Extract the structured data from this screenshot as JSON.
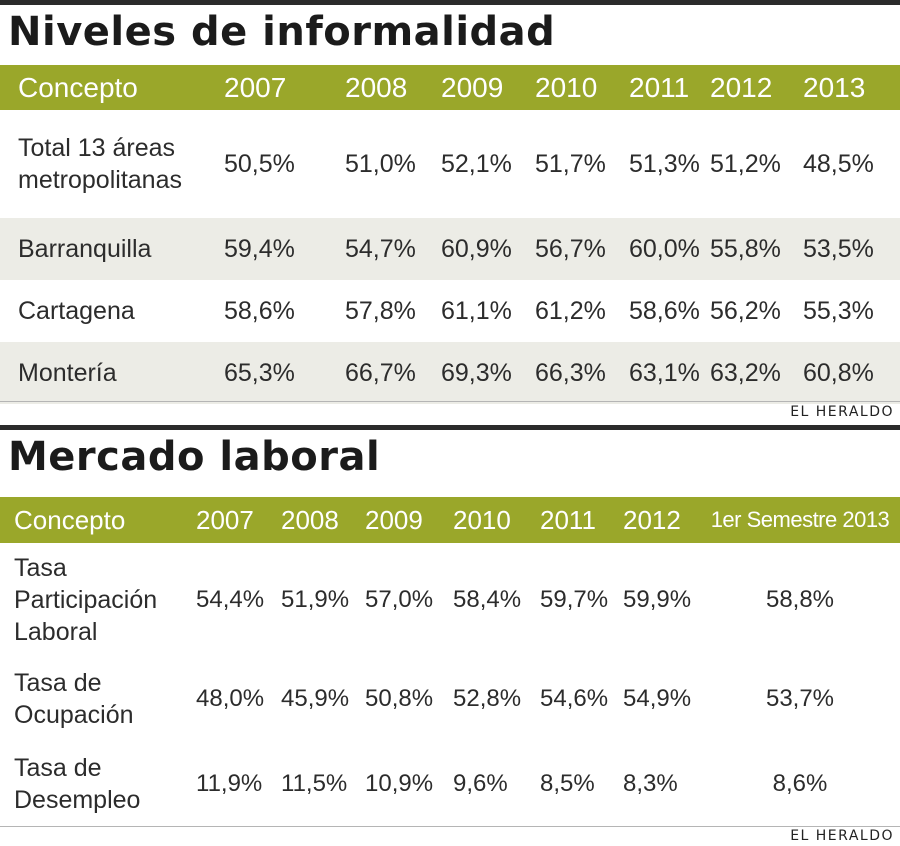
{
  "table1": {
    "title": "Niveles de informalidad",
    "header": [
      "Concepto",
      "2007",
      "2008",
      "2009",
      "2010",
      "2011",
      "2012",
      "2013"
    ],
    "rows": [
      [
        "Total 13 áreas metropolitanas",
        "50,5%",
        "51,0%",
        "52,1%",
        "51,7%",
        "51,3%",
        "51,2%",
        "48,5%"
      ],
      [
        "Barranquilla",
        "59,4%",
        "54,7%",
        "60,9%",
        "56,7%",
        "60,0%",
        "55,8%",
        "53,5%"
      ],
      [
        "Cartagena",
        "58,6%",
        "57,8%",
        "61,1%",
        "61,2%",
        "58,6%",
        "56,2%",
        "55,3%"
      ],
      [
        "Montería",
        "65,3%",
        "66,7%",
        "69,3%",
        "66,3%",
        "63,1%",
        "63,2%",
        "60,8%"
      ]
    ],
    "row1_label_lines": [
      "Total 13 áreas",
      "metropolitanas"
    ],
    "credit": "EL HERALDO"
  },
  "table2": {
    "title": "Mercado laboral",
    "header": [
      "Concepto",
      "2007",
      "2008",
      "2009",
      "2010",
      "2011",
      "2012",
      "1er Semestre 2013"
    ],
    "rows": [
      [
        "Tasa Participación Laboral",
        "54,4%",
        "51,9%",
        "57,0%",
        "58,4%",
        "59,7%",
        "59,9%",
        "58,8%"
      ],
      [
        "Tasa de Ocupación",
        "48,0%",
        "45,9%",
        "50,8%",
        "52,8%",
        "54,6%",
        "54,9%",
        "53,7%"
      ],
      [
        "Tasa de Desempleo",
        "11,9%",
        "11,5%",
        "10,9%",
        "9,6%",
        "8,5%",
        "8,3%",
        "8,6%"
      ]
    ],
    "label_lines": [
      [
        "Tasa",
        "Participación",
        "Laboral"
      ],
      [
        "Tasa de",
        "Ocupación"
      ],
      [
        "Tasa de",
        "Desempleo"
      ]
    ],
    "credit": "EL HERALDO"
  },
  "colors": {
    "header_bg": "#9aa72a",
    "shade_row": "#ecece6",
    "top_bar": "#2b2b2b"
  }
}
